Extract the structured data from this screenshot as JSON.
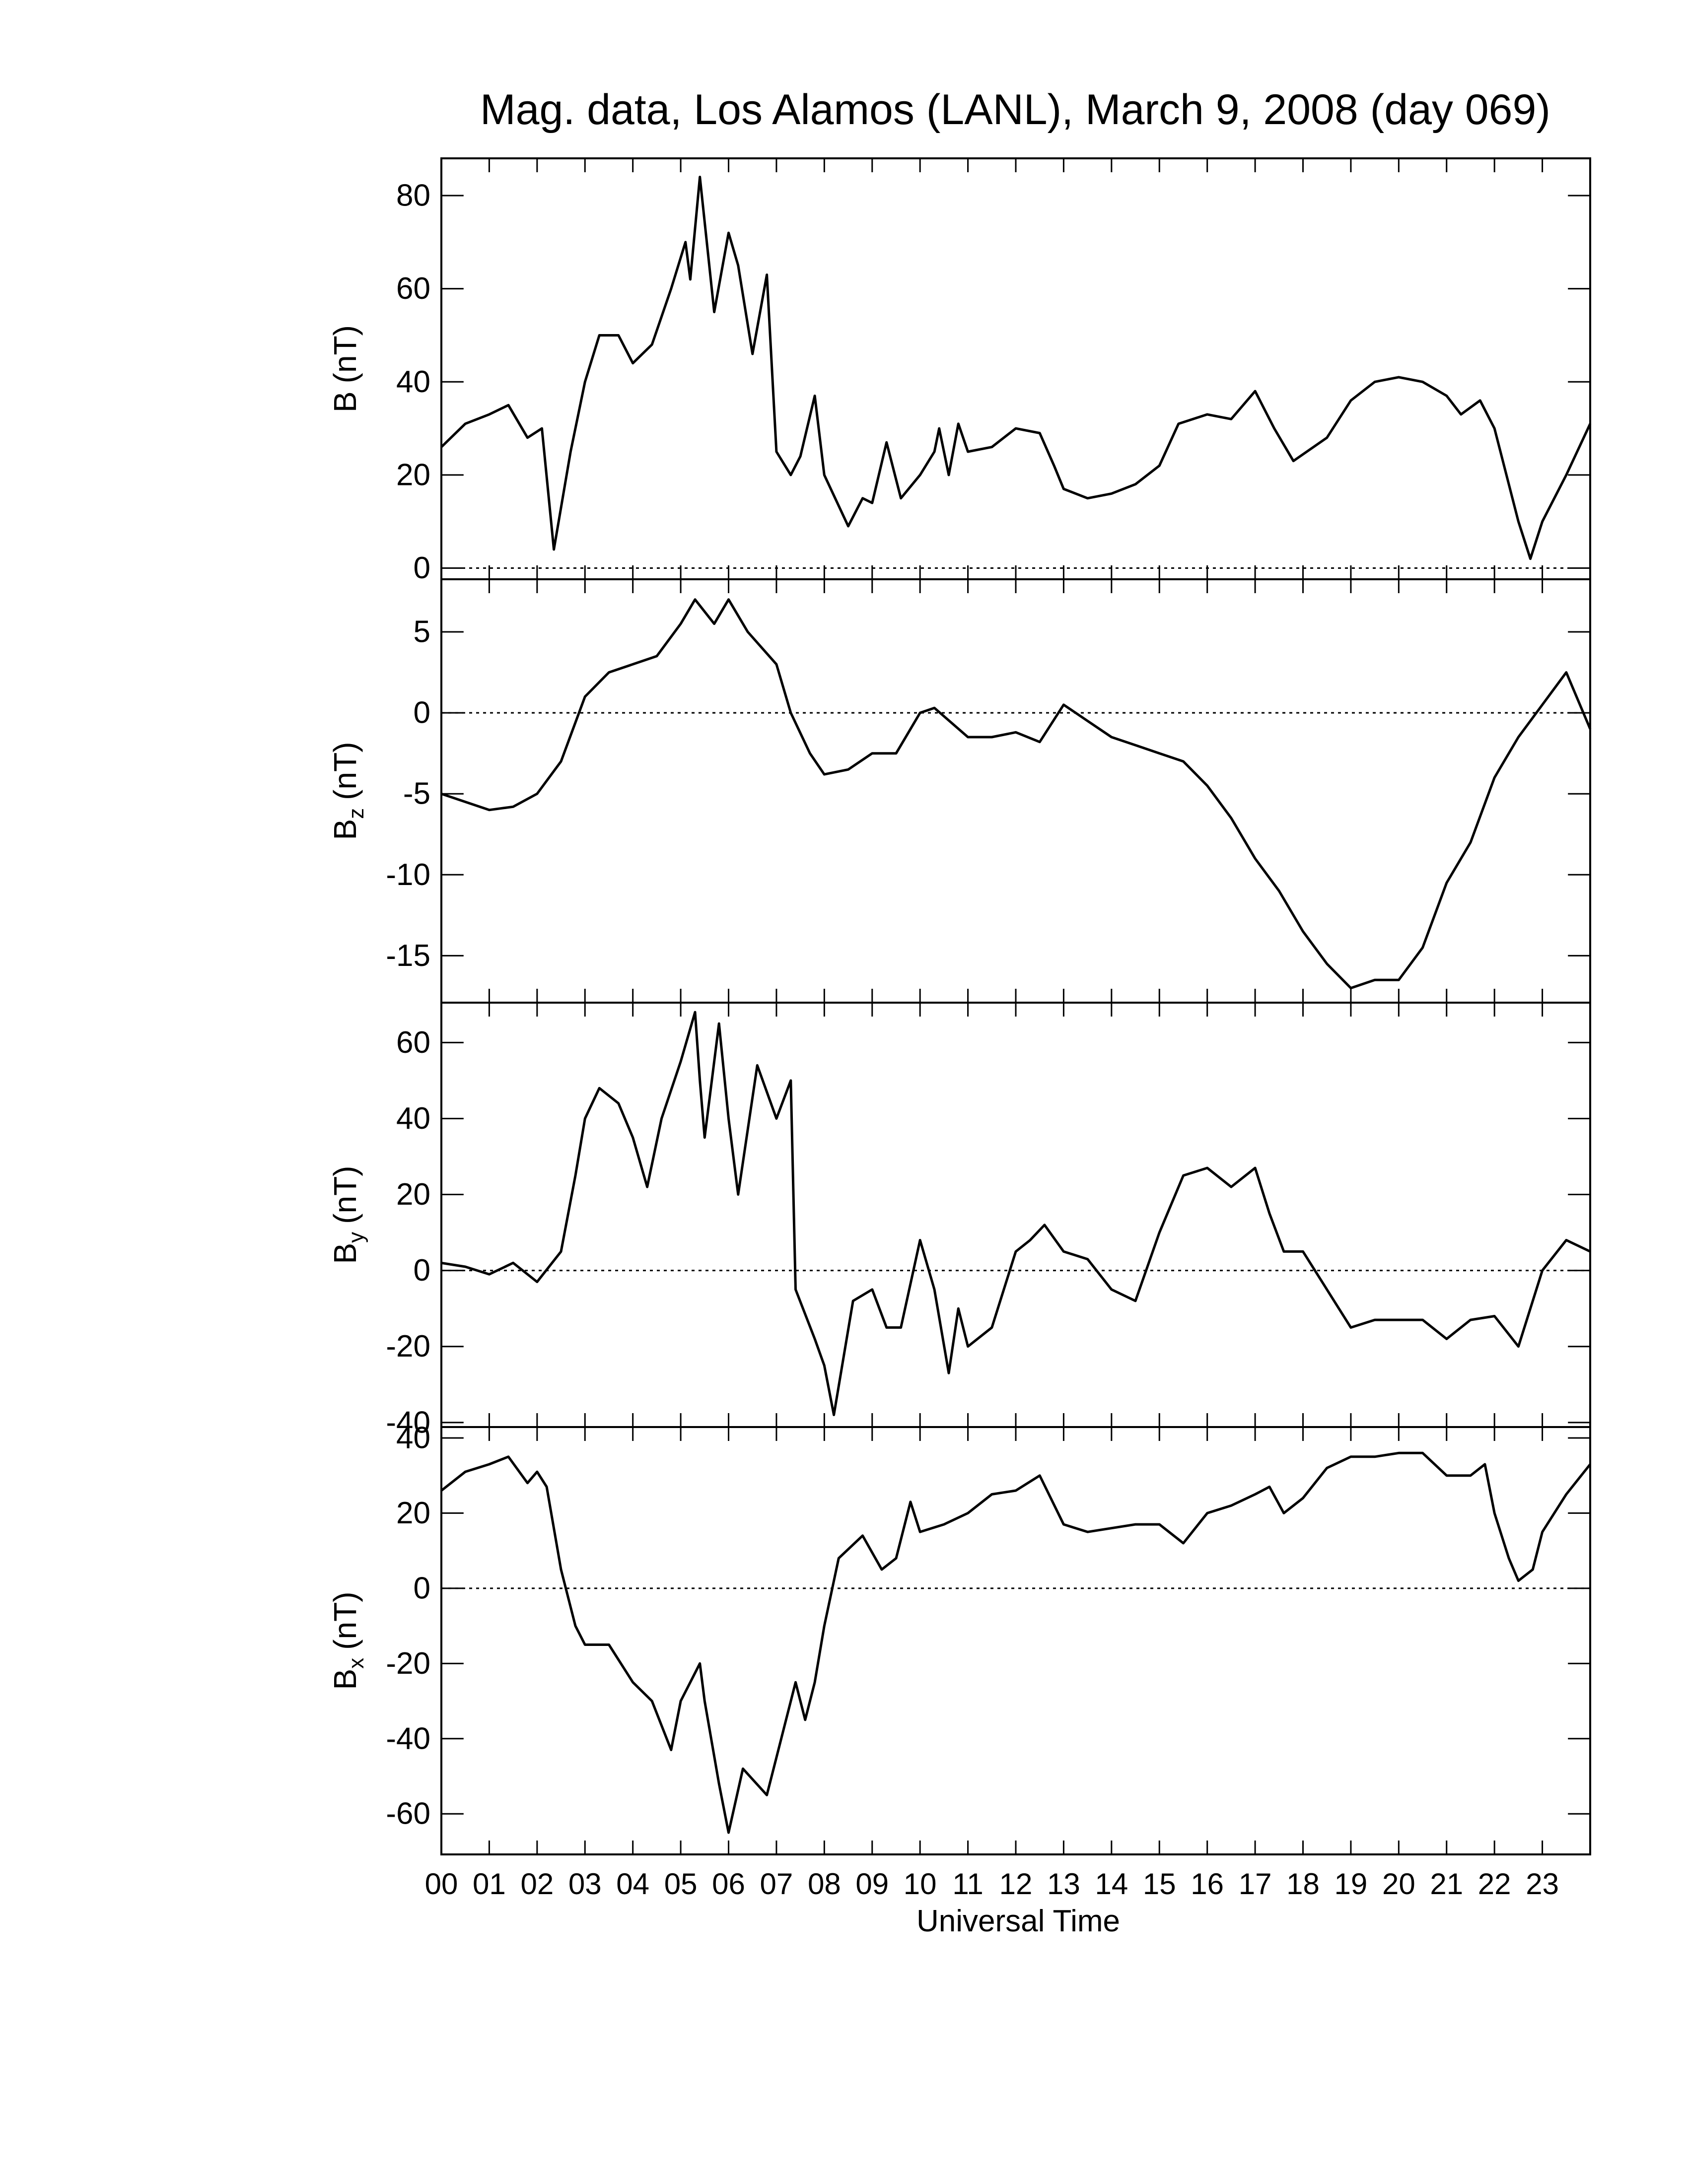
{
  "chart_data": [
    {
      "type": "line",
      "title": "Mag. data, Los Alamos (LANL), March 9, 2008 (day 069)",
      "ylabel": "B",
      "ylabel_unit": "(nT)",
      "x": [
        0,
        0.5,
        1,
        1.4,
        1.8,
        2.1,
        2.35,
        2.7,
        3,
        3.3,
        3.7,
        4,
        4.4,
        4.8,
        5.1,
        5.2,
        5.4,
        5.7,
        6,
        6.2,
        6.5,
        6.8,
        7,
        7.3,
        7.5,
        7.8,
        8,
        8.5,
        8.8,
        9,
        9.3,
        9.6,
        10,
        10.3,
        10.4,
        10.6,
        10.8,
        11,
        11.5,
        12,
        12.5,
        12.8,
        13,
        13.5,
        14,
        14.5,
        15,
        15.4,
        16,
        16.5,
        17,
        17.4,
        17.8,
        18.5,
        19,
        19.5,
        20,
        20.5,
        21,
        21.3,
        21.7,
        22,
        22.5,
        22.75,
        23,
        23.5,
        24
      ],
      "values": [
        26,
        31,
        33,
        35,
        28,
        30,
        4,
        25,
        40,
        50,
        50,
        44,
        48,
        60,
        70,
        62,
        84,
        55,
        72,
        65,
        46,
        63,
        25,
        20,
        24,
        37,
        20,
        9,
        15,
        14,
        27,
        15,
        20,
        25,
        30,
        20,
        31,
        25,
        26,
        30,
        29,
        22,
        17,
        15,
        16,
        18,
        22,
        31,
        33,
        32,
        38,
        30,
        23,
        28,
        36,
        40,
        41,
        40,
        37,
        33,
        36,
        30,
        10,
        2,
        10,
        20,
        31
      ],
      "color": "#000000",
      "xlim": [
        0,
        24
      ],
      "ylim": [
        -2.4,
        88
      ],
      "yticks": [
        0,
        20,
        40,
        60,
        80
      ],
      "zero_line": 0
    },
    {
      "type": "line",
      "ylabel": "B",
      "ylabel_sub": "z",
      "ylabel_unit": "(nT)",
      "x": [
        0,
        0.5,
        1,
        1.5,
        2,
        2.5,
        3,
        3.5,
        4,
        4.5,
        5,
        5.3,
        5.7,
        6,
        6.4,
        7,
        7.3,
        7.7,
        8,
        8.5,
        9,
        9.5,
        10,
        10.3,
        11,
        11.5,
        12,
        12.5,
        13,
        13.5,
        14,
        14.5,
        15,
        15.5,
        16,
        16.5,
        17,
        17.5,
        18,
        18.5,
        19,
        19.5,
        20,
        20.5,
        21,
        21.5,
        22,
        22.5,
        23,
        23.5,
        24
      ],
      "values": [
        -5,
        -5.5,
        -6,
        -5.8,
        -5,
        -3,
        1,
        2.5,
        3,
        3.5,
        5.5,
        7,
        5.5,
        7,
        5,
        3,
        0,
        -2.5,
        -3.8,
        -3.5,
        -2.5,
        -2.5,
        0,
        0.3,
        -1.5,
        -1.5,
        -1.2,
        -1.8,
        0.5,
        -0.5,
        -1.5,
        -2,
        -2.5,
        -3,
        -4.5,
        -6.5,
        -9,
        -11,
        -13.5,
        -15.5,
        -17,
        -16.5,
        -16.5,
        -14.5,
        -10.5,
        -8,
        -4,
        -1.5,
        0.5,
        2.5,
        -1
      ],
      "color": "#000000",
      "xlim": [
        0,
        24
      ],
      "ylim": [
        -17.9,
        8.25
      ],
      "yticks": [
        -15,
        -10,
        -5,
        0,
        5
      ],
      "zero_line": 0
    },
    {
      "type": "line",
      "ylabel": "B",
      "ylabel_sub": "y",
      "ylabel_unit": "(nT)",
      "x": [
        0,
        0.5,
        1,
        1.5,
        2,
        2.5,
        2.8,
        3,
        3.3,
        3.7,
        4,
        4.3,
        4.6,
        5,
        5.3,
        5.4,
        5.5,
        5.8,
        6,
        6.2,
        6.6,
        7,
        7.3,
        7.4,
        7.8,
        8,
        8.2,
        8.6,
        9,
        9.3,
        9.6,
        10,
        10.3,
        10.6,
        10.8,
        11,
        11.5,
        12,
        12.3,
        12.6,
        13,
        13.5,
        14,
        14.5,
        15,
        15.5,
        16,
        16.5,
        17,
        17.3,
        17.6,
        18,
        18.5,
        19,
        19.5,
        20,
        20.5,
        21,
        21.5,
        22,
        22.5,
        23,
        23.5,
        24
      ],
      "values": [
        2,
        1,
        -1,
        2,
        -3,
        5,
        25,
        40,
        48,
        44,
        35,
        22,
        40,
        55,
        68,
        50,
        35,
        65,
        40,
        20,
        54,
        40,
        50,
        -5,
        -18,
        -25,
        -38,
        -8,
        -5,
        -15,
        -15,
        8,
        -5,
        -27,
        -10,
        -20,
        -15,
        5,
        8,
        12,
        5,
        3,
        -5,
        -8,
        10,
        25,
        27,
        22,
        27,
        15,
        5,
        5,
        -5,
        -15,
        -13,
        -13,
        -13,
        -18,
        -13,
        -12,
        -20,
        0,
        8,
        5
      ],
      "color": "#000000",
      "xlim": [
        0,
        24
      ],
      "ylim": [
        -41.2,
        70.5
      ],
      "yticks": [
        -40,
        -20,
        0,
        20,
        40,
        60
      ],
      "zero_line": 0
    },
    {
      "type": "line",
      "ylabel": "B",
      "ylabel_sub": "x",
      "ylabel_unit": "(nT)",
      "xlabel": "Universal Time",
      "x": [
        0,
        0.5,
        1,
        1.4,
        1.8,
        2,
        2.2,
        2.5,
        2.8,
        3,
        3.5,
        4,
        4.4,
        4.8,
        5,
        5.4,
        5.5,
        5.8,
        6,
        6.3,
        6.8,
        7.1,
        7.4,
        7.6,
        7.8,
        8,
        8.3,
        8.8,
        9.2,
        9.5,
        9.8,
        10,
        10.5,
        11,
        11.5,
        12,
        12.5,
        13,
        13.5,
        14,
        14.5,
        15,
        15.5,
        16,
        16.5,
        17,
        17.3,
        17.6,
        18,
        18.5,
        19,
        19.5,
        20,
        20.5,
        21,
        21.5,
        21.8,
        22,
        22.3,
        22.5,
        22.8,
        23,
        23.5,
        24
      ],
      "values": [
        26,
        31,
        33,
        35,
        28,
        31,
        27,
        5,
        -10,
        -15,
        -15,
        -25,
        -30,
        -43,
        -30,
        -20,
        -30,
        -52,
        -65,
        -48,
        -55,
        -40,
        -25,
        -35,
        -25,
        -10,
        8,
        14,
        5,
        8,
        23,
        15,
        17,
        20,
        25,
        26,
        30,
        17,
        15,
        16,
        17,
        17,
        12,
        20,
        22,
        25,
        27,
        20,
        24,
        32,
        35,
        35,
        36,
        36,
        30,
        30,
        33,
        20,
        8,
        2,
        5,
        15,
        25,
        33
      ],
      "color": "#000000",
      "xlim": [
        0,
        24
      ],
      "ylim": [
        -70.8,
        42.9
      ],
      "yticks": [
        -60,
        -40,
        -20,
        0,
        20,
        40
      ],
      "zero_line": 0,
      "xticks": [
        {
          "value": 0,
          "label": "00"
        },
        {
          "value": 1,
          "label": "01"
        },
        {
          "value": 2,
          "label": "02"
        },
        {
          "value": 3,
          "label": "03"
        },
        {
          "value": 4,
          "label": "04"
        },
        {
          "value": 5,
          "label": "05"
        },
        {
          "value": 6,
          "label": "06"
        },
        {
          "value": 7,
          "label": "07"
        },
        {
          "value": 8,
          "label": "08"
        },
        {
          "value": 9,
          "label": "09"
        },
        {
          "value": 10,
          "label": "10"
        },
        {
          "value": 11,
          "label": "11"
        },
        {
          "value": 12,
          "label": "12"
        },
        {
          "value": 13,
          "label": "13"
        },
        {
          "value": 14,
          "label": "14"
        },
        {
          "value": 15,
          "label": "15"
        },
        {
          "value": 16,
          "label": "16"
        },
        {
          "value": 17,
          "label": "17"
        },
        {
          "value": 18,
          "label": "18"
        },
        {
          "value": 19,
          "label": "19"
        },
        {
          "value": 20,
          "label": "20"
        },
        {
          "value": 21,
          "label": "21"
        },
        {
          "value": 22,
          "label": "22"
        },
        {
          "value": 23,
          "label": "23"
        }
      ]
    }
  ]
}
